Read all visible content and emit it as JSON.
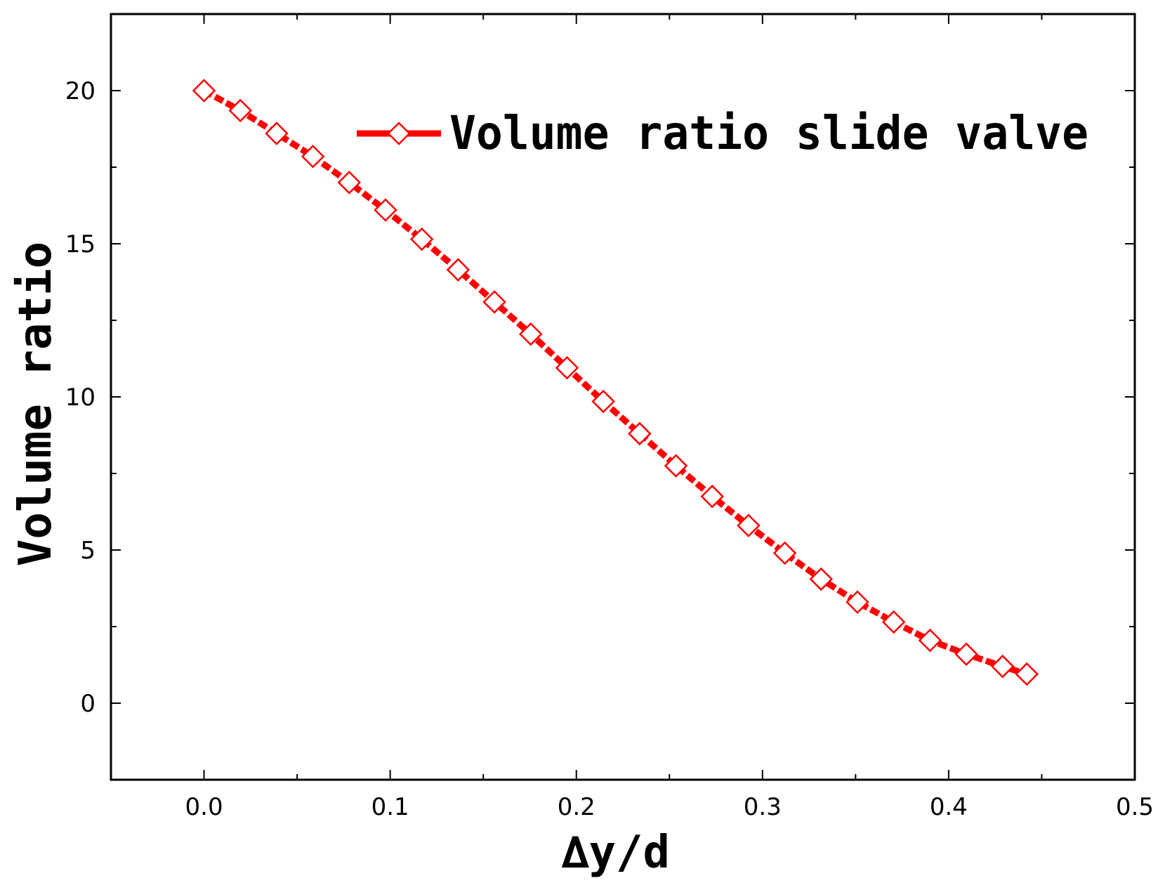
{
  "chart_data": {
    "type": "line",
    "title": "",
    "xlabel": "∆y/d",
    "ylabel": "Volume ratio",
    "xlim": [
      -0.05,
      0.5
    ],
    "ylim": [
      -2.5,
      22.5
    ],
    "xticks": [
      0.0,
      0.1,
      0.2,
      0.3,
      0.4,
      0.5
    ],
    "xtick_labels": [
      "0.0",
      "0.1",
      "0.2",
      "0.3",
      "0.4",
      "0.5"
    ],
    "yticks": [
      0,
      5,
      10,
      15,
      20
    ],
    "ytick_labels": [
      "0",
      "5",
      "10",
      "15",
      "20"
    ],
    "grid": false,
    "legend_position": "top-right",
    "series": [
      {
        "name": "Volume ratio slide valve",
        "color": "#ff0000",
        "marker": "open-diamond",
        "line_style": "dashed",
        "x": [
          0.0,
          0.0195,
          0.039,
          0.0585,
          0.078,
          0.0975,
          0.117,
          0.1365,
          0.156,
          0.1755,
          0.195,
          0.2145,
          0.234,
          0.2535,
          0.273,
          0.2925,
          0.312,
          0.3315,
          0.351,
          0.3705,
          0.39,
          0.4095,
          0.429,
          0.442
        ],
        "y": [
          20.0,
          19.35,
          18.6,
          17.85,
          17.0,
          16.1,
          15.15,
          14.15,
          13.1,
          12.05,
          10.95,
          9.85,
          8.8,
          7.75,
          6.75,
          5.8,
          4.9,
          4.05,
          3.3,
          2.65,
          2.05,
          1.6,
          1.2,
          0.95
        ]
      }
    ]
  }
}
